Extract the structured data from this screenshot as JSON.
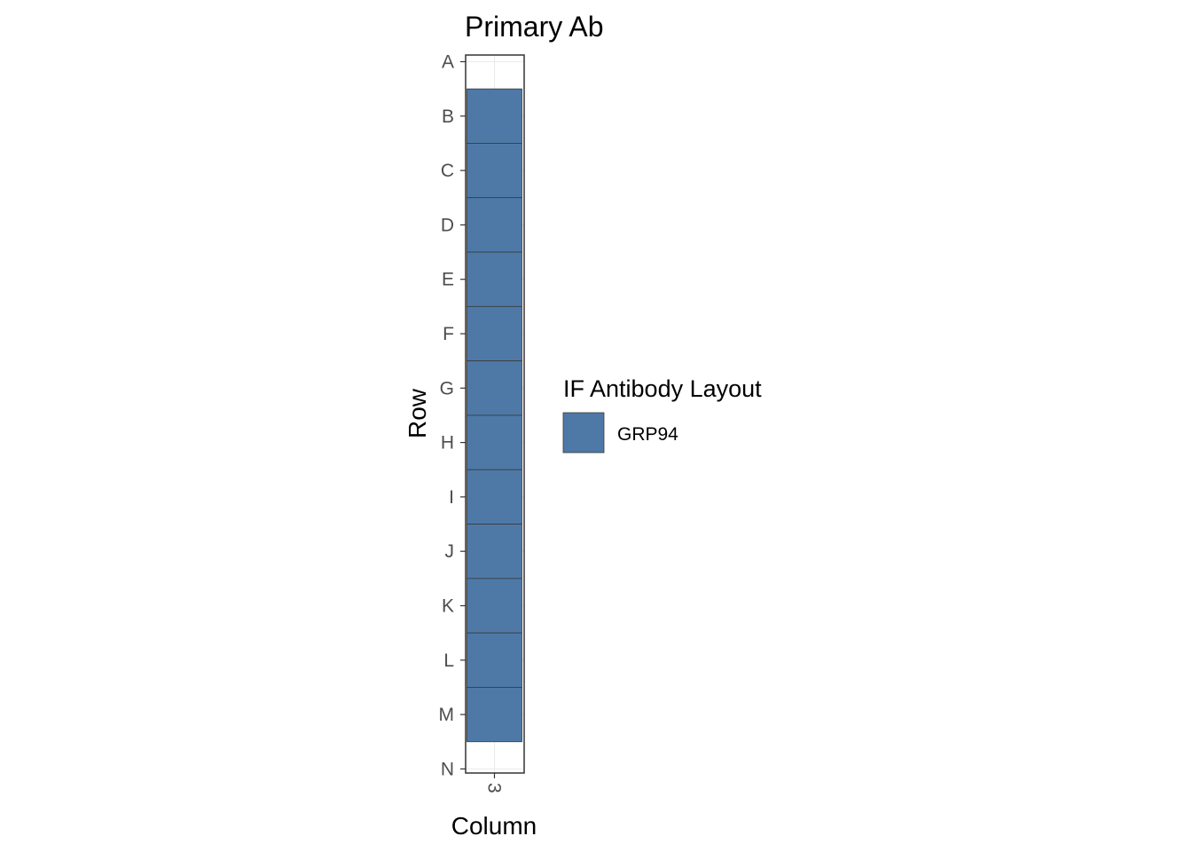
{
  "chart_data": {
    "type": "heatmap",
    "title": "Primary Ab",
    "xlabel": "Column",
    "ylabel": "Row",
    "x_categories": [
      "3"
    ],
    "y_categories": [
      "A",
      "B",
      "C",
      "D",
      "E",
      "F",
      "G",
      "H",
      "I",
      "J",
      "K",
      "L",
      "M",
      "N"
    ],
    "cells": [
      {
        "column": "3",
        "row": "B",
        "value": "GRP94"
      },
      {
        "column": "3",
        "row": "C",
        "value": "GRP94"
      },
      {
        "column": "3",
        "row": "D",
        "value": "GRP94"
      },
      {
        "column": "3",
        "row": "E",
        "value": "GRP94"
      },
      {
        "column": "3",
        "row": "F",
        "value": "GRP94"
      },
      {
        "column": "3",
        "row": "G",
        "value": "GRP94"
      },
      {
        "column": "3",
        "row": "H",
        "value": "GRP94"
      },
      {
        "column": "3",
        "row": "I",
        "value": "GRP94"
      },
      {
        "column": "3",
        "row": "J",
        "value": "GRP94"
      },
      {
        "column": "3",
        "row": "K",
        "value": "GRP94"
      },
      {
        "column": "3",
        "row": "L",
        "value": "GRP94"
      },
      {
        "column": "3",
        "row": "M",
        "value": "GRP94"
      }
    ],
    "legend": {
      "title": "IF Antibody Layout",
      "placement": "right",
      "entries": [
        {
          "label": "GRP94",
          "color": "#4e79a7"
        }
      ]
    },
    "grid": true,
    "colors": {
      "fill": "#4e79a7",
      "cell_border": "#3a3a3a",
      "panel_border": "#333333",
      "grid": "#ebebeb"
    }
  }
}
